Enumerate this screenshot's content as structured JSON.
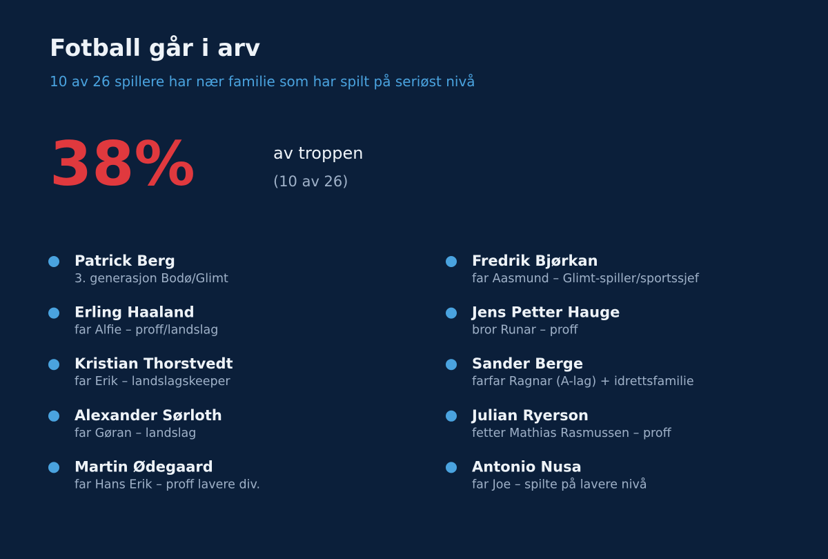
{
  "header": {
    "title": "Fotball går i arv",
    "subtitle": "10 av 26 spillere har nær familie som har spilt på seriøst nivå"
  },
  "stat": {
    "value": "38%",
    "label": "av troppen",
    "detail": "(10 av 26)"
  },
  "players": {
    "left": [
      {
        "name": "Patrick Berg",
        "relation": "3. generasjon Bodø/Glimt"
      },
      {
        "name": "Erling Haaland",
        "relation": "far Alfie – proff/landslag"
      },
      {
        "name": "Kristian Thorstvedt",
        "relation": "far Erik – landslagskeeper"
      },
      {
        "name": "Alexander Sørloth",
        "relation": "far Gøran – landslag"
      },
      {
        "name": "Martin Ødegaard",
        "relation": "far Hans Erik – proff lavere div."
      }
    ],
    "right": [
      {
        "name": "Fredrik Bjørkan",
        "relation": "far Aasmund – Glimt-spiller/sportssjef"
      },
      {
        "name": "Jens Petter Hauge",
        "relation": "bror Runar – proff"
      },
      {
        "name": "Sander Berge",
        "relation": "farfar Ragnar (A-lag) + idrettsfamilie"
      },
      {
        "name": "Julian Ryerson",
        "relation": "fetter Mathias Rasmussen – proff"
      },
      {
        "name": "Antonio Nusa",
        "relation": "far Joe – spilte på lavere nivå"
      }
    ]
  }
}
